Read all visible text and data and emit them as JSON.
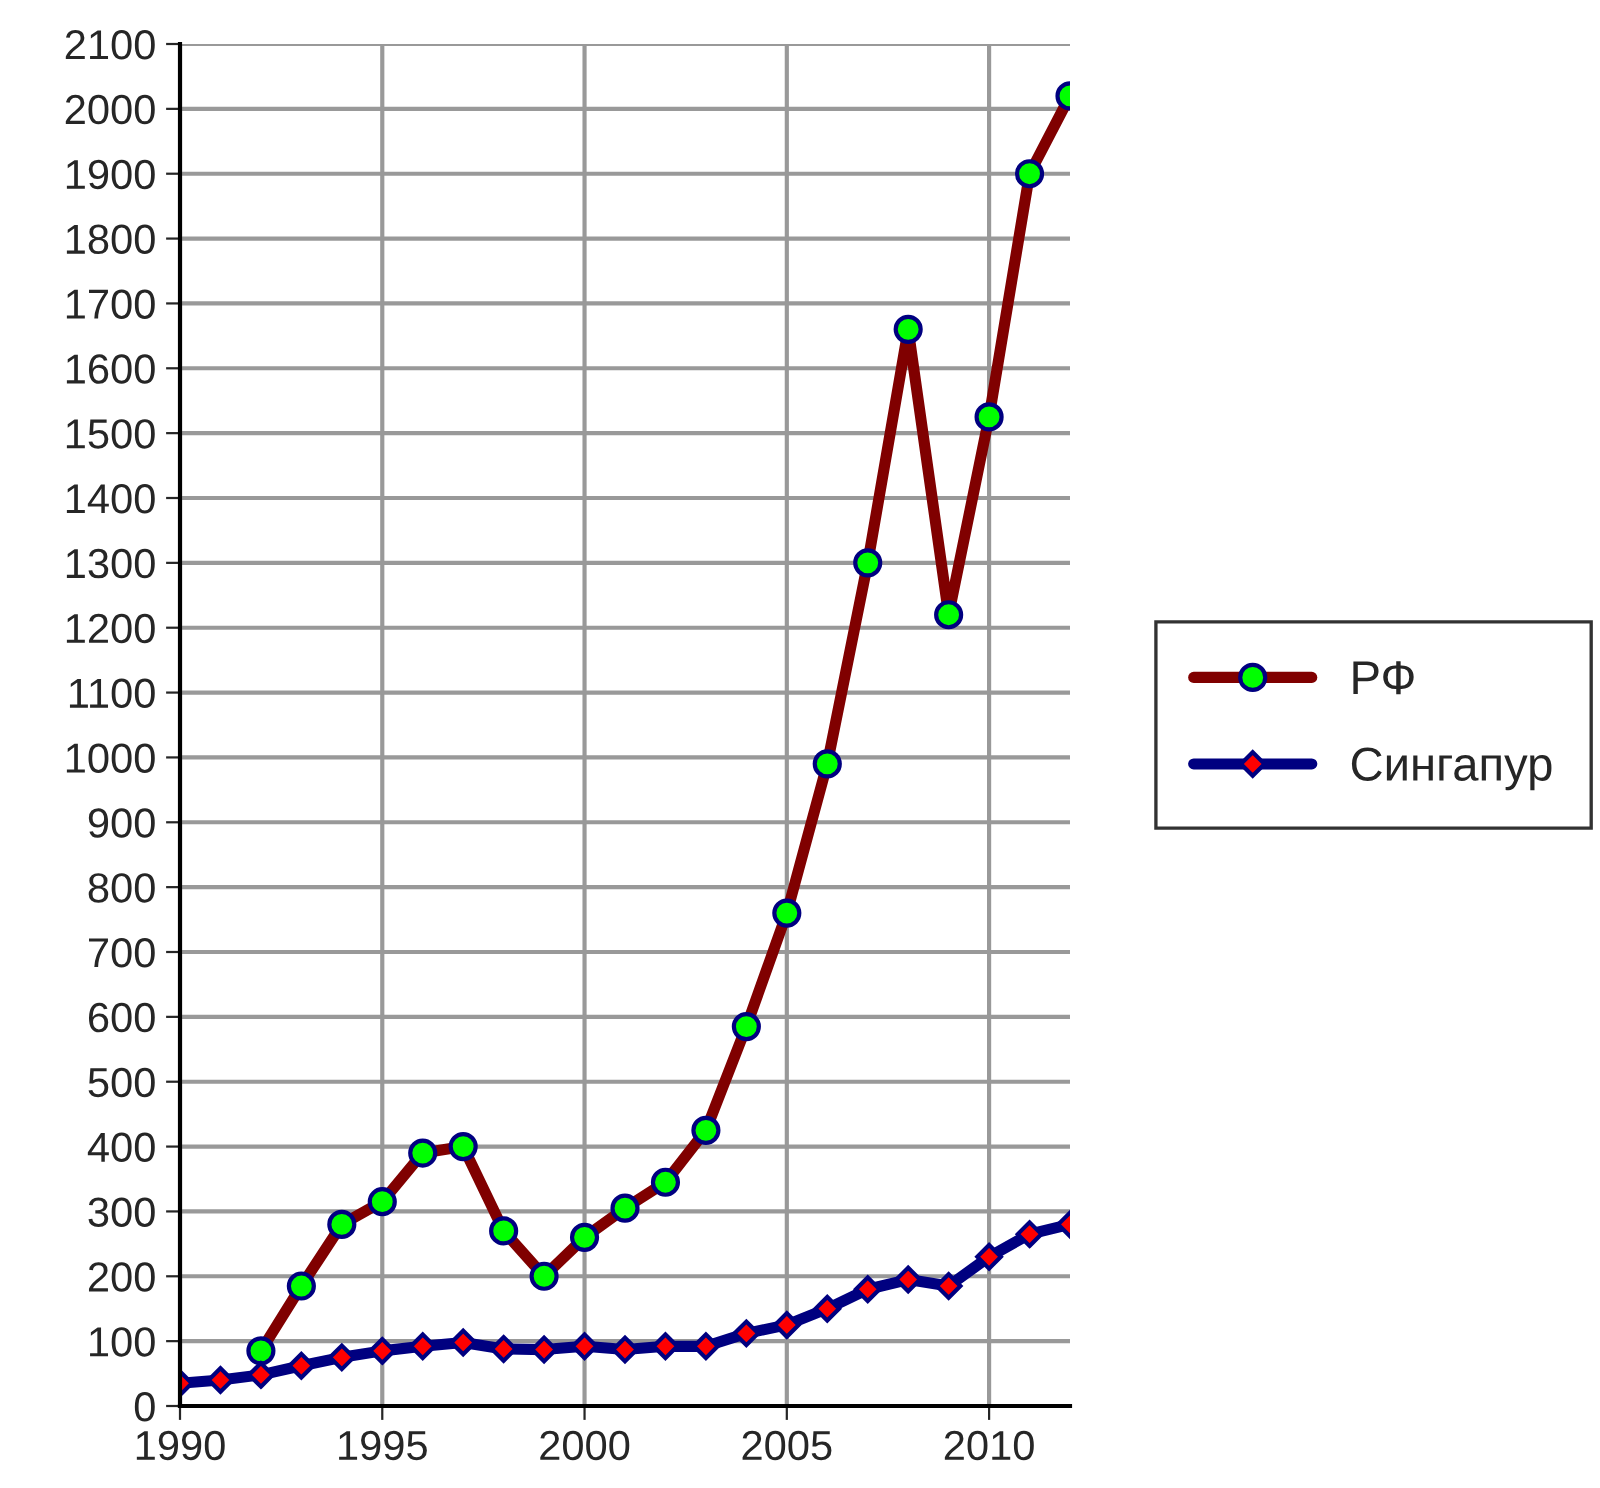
{
  "chart_data": {
    "type": "line",
    "x": [
      1990,
      1991,
      1992,
      1993,
      1994,
      1995,
      1996,
      1997,
      1998,
      1999,
      2000,
      2001,
      2002,
      2003,
      2004,
      2005,
      2006,
      2007,
      2008,
      2009,
      2010,
      2011,
      2012
    ],
    "series": [
      {
        "name": "РФ",
        "color": "#800000",
        "marker": "circle",
        "values": [
          null,
          null,
          85,
          185,
          280,
          315,
          390,
          400,
          270,
          200,
          260,
          305,
          345,
          425,
          585,
          760,
          990,
          1300,
          1660,
          1220,
          1525,
          1900,
          2020
        ]
      },
      {
        "name": "Сингапур",
        "color": "#000080",
        "marker": "diamond",
        "values": [
          35,
          40,
          48,
          62,
          75,
          85,
          92,
          98,
          88,
          87,
          92,
          87,
          92,
          92,
          112,
          125,
          150,
          180,
          195,
          185,
          230,
          265,
          280
        ]
      }
    ],
    "xlim": [
      1990,
      2012
    ],
    "xticks": [
      1990,
      1995,
      2000,
      2005,
      2010
    ],
    "ylim": [
      0,
      2100
    ],
    "yticks": [
      0,
      100,
      200,
      300,
      400,
      500,
      600,
      700,
      800,
      900,
      1000,
      1100,
      1200,
      1300,
      1400,
      1500,
      1600,
      1700,
      1800,
      1900,
      2000,
      2100
    ],
    "grid": true,
    "legend": "right",
    "line_style": "solid"
  }
}
